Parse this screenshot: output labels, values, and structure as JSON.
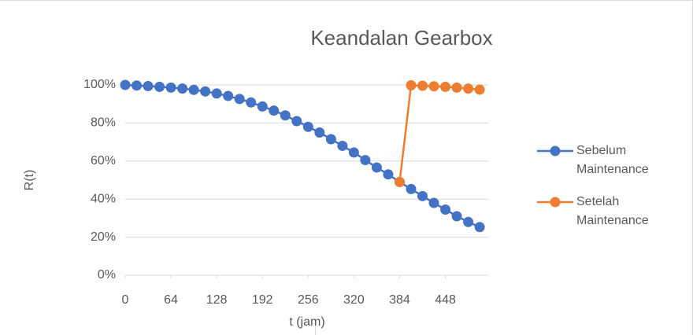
{
  "chart_data": {
    "type": "line",
    "title": "Keandalan Gearbox",
    "x_label": "t (jam)",
    "y_label": "R(t)",
    "xlim": [
      0,
      508
    ],
    "xticks": [
      0,
      64,
      128,
      192,
      256,
      320,
      384,
      448
    ],
    "ylim": [
      0,
      100
    ],
    "yticks": [
      {
        "value": 0,
        "label": "0%"
      },
      {
        "value": 20,
        "label": "20%"
      },
      {
        "value": 40,
        "label": "40%"
      },
      {
        "value": 60,
        "label": "60%"
      },
      {
        "value": 80,
        "label": "80%"
      },
      {
        "value": 100,
        "label": "100%"
      }
    ],
    "grid": true,
    "legend": "right",
    "series": [
      {
        "name": "Sebelum Maintenance",
        "color": "#4472c4",
        "x": [
          0,
          16,
          32,
          48,
          64,
          80,
          96,
          112,
          128,
          144,
          160,
          176,
          192,
          208,
          224,
          240,
          256,
          272,
          288,
          304,
          320,
          336,
          352,
          368,
          384,
          400,
          416,
          432,
          448,
          464,
          480,
          496
        ],
        "values": [
          100,
          99.7,
          99.4,
          99,
          98.6,
          98.1,
          97.4,
          96.6,
          95.5,
          94.2,
          92.6,
          90.8,
          88.7,
          86.5,
          84,
          81,
          78,
          75,
          71.5,
          68,
          64.5,
          60.5,
          56.6,
          53,
          49,
          45.3,
          41.6,
          38,
          34.5,
          31,
          28,
          25.3
        ]
      },
      {
        "name": "Setelah Maintenance",
        "color": "#ed7d31",
        "x": [
          384,
          400,
          416,
          432,
          448,
          464,
          480,
          496
        ],
        "values": [
          49,
          99.8,
          99.6,
          99.3,
          99,
          98.6,
          98.1,
          97.5
        ]
      }
    ]
  }
}
